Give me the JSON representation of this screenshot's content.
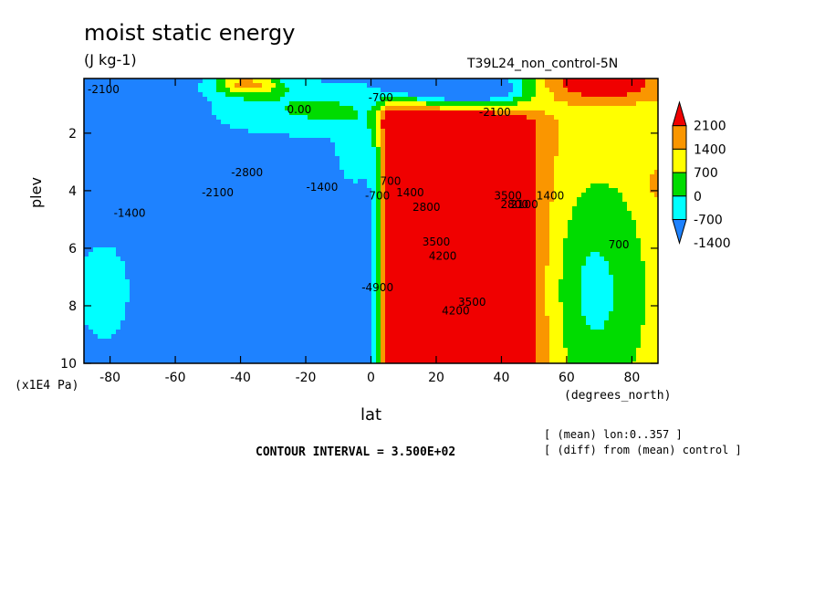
{
  "chart_data": {
    "type": "heatmap",
    "title": "moist static energy",
    "units": "(J kg-1)",
    "run_name": "T39L24_non_control-5N",
    "xlabel": "lat",
    "xunits": "(degrees_north)",
    "ylabel": "plev",
    "yunits": "(x1E4 Pa)",
    "xlim": [
      -88,
      88
    ],
    "ylim": [
      10,
      0.1
    ],
    "x_ticks": [
      -80,
      -60,
      -40,
      -20,
      0,
      20,
      40,
      60,
      80
    ],
    "y_ticks": [
      2,
      4,
      6,
      8,
      10
    ],
    "colorbar": {
      "labels": [
        "2100",
        "1400",
        "700",
        "0",
        "-700",
        "-1400"
      ],
      "bins": [
        {
          "range": [
            1750,
            99999
          ],
          "color": "#f00000"
        },
        {
          "range": [
            1050,
            1750
          ],
          "color": "#fa9600"
        },
        {
          "range": [
            350,
            1050
          ],
          "color": "#ffff00"
        },
        {
          "range": [
            -350,
            350
          ],
          "color": "#00dc00"
        },
        {
          "range": [
            -1050,
            -350
          ],
          "color": "#00ffff"
        },
        {
          "range": [
            -99999,
            -1050
          ],
          "color": "#1e82ff"
        }
      ]
    },
    "contour_labels": [
      {
        "lat": -82,
        "p": 0.6,
        "text": "-2100"
      },
      {
        "lat": -74,
        "p": 4.9,
        "text": "-1400"
      },
      {
        "lat": -47,
        "p": 4.2,
        "text": "-2100"
      },
      {
        "lat": -38,
        "p": 3.5,
        "text": "-2800"
      },
      {
        "lat": -15,
        "p": 4.0,
        "text": "-1400"
      },
      {
        "lat": -22,
        "p": 1.3,
        "text": "0.00"
      },
      {
        "lat": 2,
        "p": 7.5,
        "text": "-4900"
      },
      {
        "lat": 2,
        "p": 4.3,
        "text": "-700"
      },
      {
        "lat": 6,
        "p": 3.8,
        "text": "700"
      },
      {
        "lat": 12,
        "p": 4.2,
        "text": "1400"
      },
      {
        "lat": 17,
        "p": 4.7,
        "text": "2800"
      },
      {
        "lat": 20,
        "p": 5.9,
        "text": "3500"
      },
      {
        "lat": 22,
        "p": 6.4,
        "text": "4200"
      },
      {
        "lat": 26,
        "p": 8.3,
        "text": "4200"
      },
      {
        "lat": 31,
        "p": 8.0,
        "text": "3500"
      },
      {
        "lat": 42,
        "p": 4.3,
        "text": "3500"
      },
      {
        "lat": 44,
        "p": 4.6,
        "text": "2800"
      },
      {
        "lat": 47,
        "p": 4.6,
        "text": "2100"
      },
      {
        "lat": 55,
        "p": 4.3,
        "text": "1400"
      },
      {
        "lat": 76,
        "p": 6.0,
        "text": "700"
      },
      {
        "lat": 3,
        "p": 0.9,
        "text": "-700"
      },
      {
        "lat": 38,
        "p": 1.4,
        "text": "-2100"
      }
    ]
  },
  "footer": {
    "contour_interval": "CONTOUR INTERVAL = 3.500E+02",
    "note1": "[ (mean) lon:0..357 ]",
    "note2": "[ (diff) from (mean) control ]"
  }
}
